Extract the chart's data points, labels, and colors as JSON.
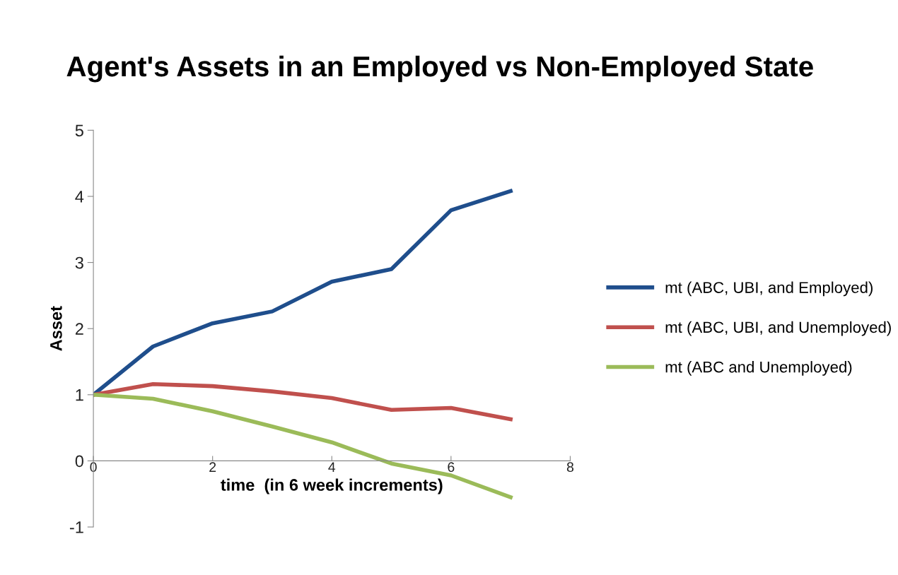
{
  "chart_data": {
    "type": "line",
    "title": "Agent's Assets in an Employed vs Non-Employed State",
    "xlabel": "time  (in 6 week increments)",
    "ylabel": "Asset",
    "x": [
      0,
      1,
      2,
      3,
      4,
      5,
      6,
      7
    ],
    "series": [
      {
        "name": "mt (ABC, UBI, and Employed)",
        "color": "#1f4e8c",
        "values": [
          1.0,
          1.73,
          2.08,
          2.26,
          2.71,
          2.9,
          3.79,
          4.08
        ]
      },
      {
        "name": "mt (ABC, UBI, and Unemployed)",
        "color": "#c0504d",
        "values": [
          1.0,
          1.16,
          1.13,
          1.05,
          0.95,
          0.77,
          0.8,
          0.63
        ]
      },
      {
        "name": "mt (ABC and Unemployed)",
        "color": "#9bbb59",
        "values": [
          1.0,
          0.94,
          0.75,
          0.52,
          0.28,
          -0.04,
          -0.22,
          -0.55
        ]
      }
    ],
    "xlim": [
      0,
      8
    ],
    "xticks": [
      0,
      2,
      4,
      6,
      8
    ],
    "ylim": [
      -1,
      5
    ],
    "yticks": [
      -1,
      0,
      1,
      2,
      3,
      4,
      5
    ],
    "grid": false,
    "legend": "right",
    "marker": "none",
    "line_style": "solid"
  }
}
